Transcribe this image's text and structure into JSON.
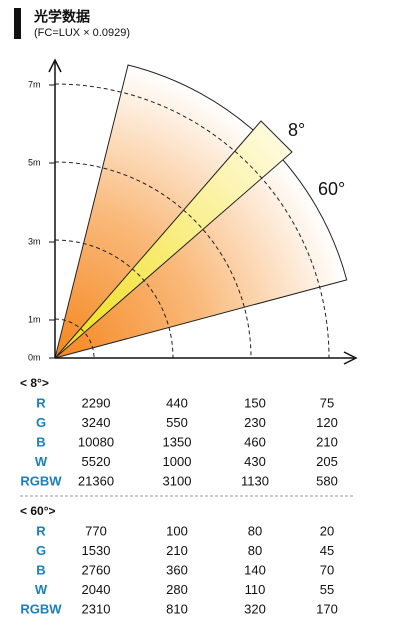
{
  "header": {
    "title": "光学数据",
    "subtitle": "(FC=LUX × 0.0929)"
  },
  "diagram": {
    "distance_labels": [
      "7m",
      "5m",
      "3m",
      "1m",
      "0m"
    ],
    "beam_labels": [
      "8°",
      "60°"
    ]
  },
  "tables": [
    {
      "heading": "< 8°>",
      "rows": [
        {
          "label": "R",
          "values": [
            2290,
            440,
            150,
            75
          ]
        },
        {
          "label": "G",
          "values": [
            3240,
            550,
            230,
            120
          ]
        },
        {
          "label": "B",
          "values": [
            10080,
            1350,
            460,
            210
          ]
        },
        {
          "label": "W",
          "values": [
            5520,
            1000,
            430,
            205
          ]
        },
        {
          "label": "RGBW",
          "values": [
            21360,
            3100,
            1130,
            580
          ]
        }
      ]
    },
    {
      "heading": "< 60°>",
      "rows": [
        {
          "label": "R",
          "values": [
            770,
            100,
            80,
            20
          ]
        },
        {
          "label": "G",
          "values": [
            1530,
            210,
            80,
            45
          ]
        },
        {
          "label": "B",
          "values": [
            2760,
            360,
            140,
            70
          ]
        },
        {
          "label": "W",
          "values": [
            2040,
            280,
            110,
            55
          ]
        },
        {
          "label": "RGBW",
          "values": [
            2310,
            810,
            320,
            170
          ]
        }
      ]
    }
  ]
}
